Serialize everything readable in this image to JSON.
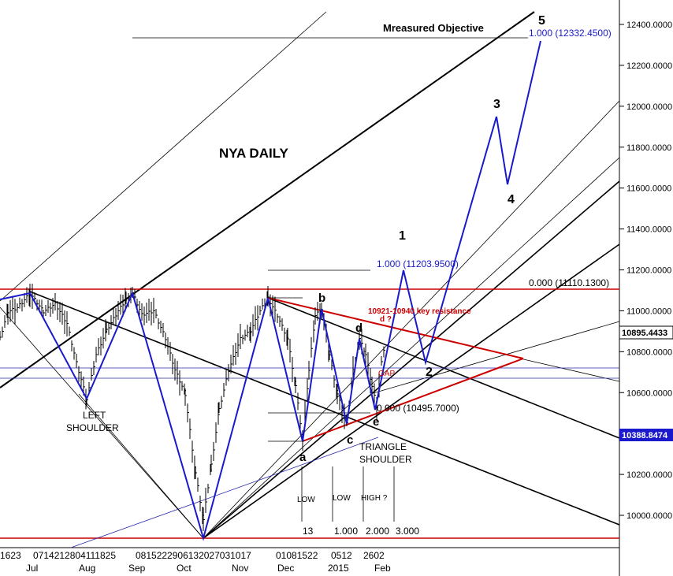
{
  "chart_data": {
    "type": "line",
    "title": "NYA DAILY",
    "y_axis": {
      "ticks": [
        "12400.0000",
        "12200.0000",
        "12000.0000",
        "11800.0000",
        "11600.0000",
        "11400.0000",
        "11200.0000",
        "11000.0000",
        "10800.0000",
        "10600.0000",
        "10400.0000",
        "10200.0000",
        "10000.0000"
      ],
      "ylim": [
        9900,
        12450
      ]
    },
    "price_tags": [
      {
        "label": "10895.4433",
        "value": 10895.4433,
        "style": "outline"
      },
      {
        "label": "10388.8474",
        "value": 10388.8474,
        "style": "filled"
      }
    ],
    "x_axis": {
      "day_labels": [
        "1623",
        "0714212804111825",
        "0815222906132027031017",
        "01081522",
        "0512",
        "2602"
      ],
      "month_labels": [
        "Jul",
        "Aug",
        "Sep",
        "Oct",
        "Nov",
        "Dec",
        "2015",
        "Feb"
      ]
    },
    "annotations": {
      "measured_objective": "Mreasured Objective",
      "fib_objective": "1.000 (12332.4500)",
      "fib_1": "1.000 (11203.9500)",
      "fib_0_top": "0.000 (11110.1300)",
      "fib_0_bottom": "0.000 (10495.7000)",
      "key_resistance": "10921-10940 key resistance",
      "d_query": "d ?",
      "gap": "GAP",
      "left_shoulder": "LEFT SHOULDER",
      "triangle_shoulder": "TRIANGLE SHOULDER",
      "wave_labels": [
        "a",
        "b",
        "c",
        "d",
        "e",
        "1",
        "2",
        "3",
        "4",
        "5"
      ],
      "cycle_labels": [
        "LOW",
        "LOW",
        "HIGH ?"
      ],
      "cycle_counts": [
        "13",
        "1.000",
        "2.000",
        "3.000"
      ]
    },
    "levels": {
      "top_red_line": 11110.13,
      "bottom_red_line": 9890,
      "measured_line": 12332.45,
      "gap_upper": 10715,
      "gap_lower": 10665
    },
    "projection_path": [
      {
        "label": "start",
        "value": 10495.7
      },
      {
        "label": "1",
        "value": 11203.95
      },
      {
        "label": "2",
        "value": 10750
      },
      {
        "label": "3",
        "value": 11950
      },
      {
        "label": "4",
        "value": 11620
      },
      {
        "label": "5",
        "value": 12332.45
      }
    ],
    "colors": {
      "price": "#000000",
      "waves": "#1a1acc",
      "resistance": "#cc0000",
      "levels": "#cc0000"
    }
  }
}
